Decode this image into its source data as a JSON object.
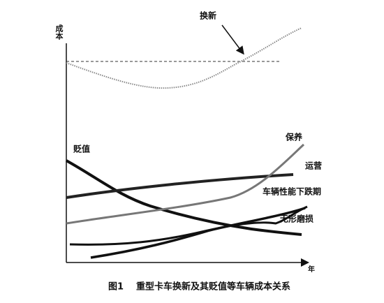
{
  "axis": {
    "y_label": "成本",
    "x_label": "年"
  },
  "labels": {
    "replace": "换新",
    "depreciation": "贬值",
    "maintenance": "保养",
    "operation": "运营",
    "performance_decline": "车辆性能下跌期",
    "intangible_wear": "无形磨损"
  },
  "caption": {
    "figure": "图1",
    "text": "重型卡车换新及其贬值等车辆成本关系"
  }
}
